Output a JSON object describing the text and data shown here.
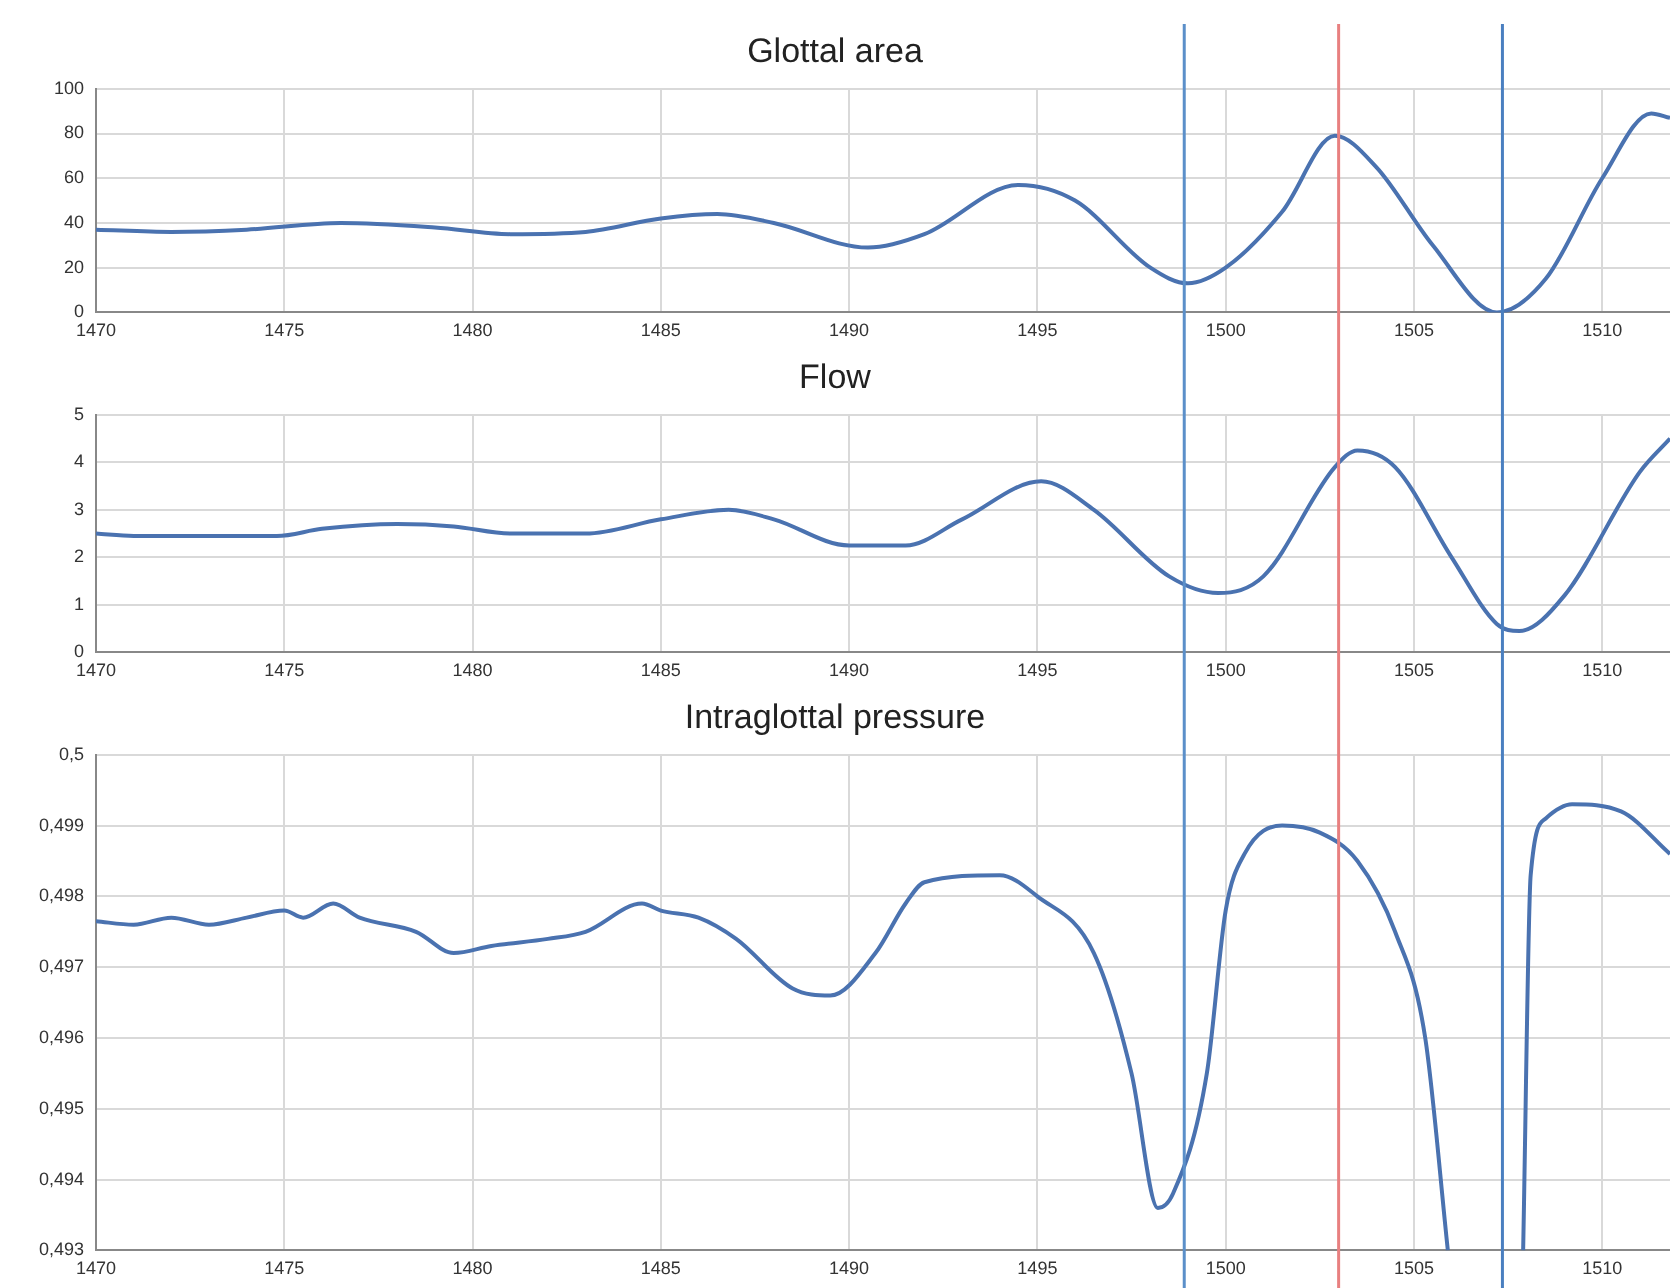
{
  "chart_data": [
    {
      "type": "line",
      "title": "Glottal area",
      "xlim": [
        1470,
        1511.8
      ],
      "xticks": [
        1470,
        1475,
        1480,
        1485,
        1490,
        1495,
        1500,
        1505,
        1510
      ],
      "ylim": [
        0,
        100
      ],
      "yticks": [
        0,
        20,
        40,
        60,
        80,
        100
      ],
      "grid": true,
      "x": [
        1470,
        1472,
        1474,
        1476.5,
        1479,
        1481,
        1483,
        1485,
        1486.5,
        1488,
        1490.5,
        1492,
        1494.5,
        1496,
        1498,
        1499,
        1500,
        1501.5,
        1502.9,
        1504,
        1505.5,
        1507.2,
        1508.5,
        1510,
        1511.3,
        1511.8
      ],
      "series": [
        {
          "color": "#4a72b0",
          "values": [
            37,
            36,
            37,
            40,
            38,
            35,
            36,
            42,
            44,
            40,
            29,
            35,
            57,
            50,
            20,
            13,
            20,
            45,
            79,
            65,
            30,
            0,
            15,
            60,
            89,
            87
          ]
        }
      ],
      "ref_lines": [
        {
          "axis": "x",
          "value": 1498.9,
          "color": "#5b8fc9"
        },
        {
          "axis": "x",
          "value": 1503,
          "color": "#e88080"
        },
        {
          "axis": "x",
          "value": 1507.35,
          "color": "#4a7fc0"
        }
      ]
    },
    {
      "type": "line",
      "title": "Flow",
      "xlim": [
        1470,
        1511.8
      ],
      "xticks": [
        1470,
        1475,
        1480,
        1485,
        1490,
        1495,
        1500,
        1505,
        1510
      ],
      "ylim": [
        0,
        5
      ],
      "yticks": [
        0,
        1,
        2,
        3,
        4,
        5
      ],
      "grid": true,
      "x": [
        1470,
        1471,
        1474.8,
        1476,
        1478,
        1479.5,
        1481,
        1483,
        1485,
        1486.8,
        1488,
        1490,
        1491.5,
        1493,
        1495.1,
        1496.5,
        1498.5,
        1499.8,
        1501,
        1502.9,
        1503.5,
        1504.5,
        1506,
        1507.2,
        1507.8,
        1509,
        1511,
        1511.8
      ],
      "series": [
        {
          "color": "#4a72b0",
          "values": [
            2.5,
            2.45,
            2.45,
            2.6,
            2.7,
            2.65,
            2.5,
            2.5,
            2.8,
            3.0,
            2.8,
            2.25,
            2.25,
            2.8,
            3.6,
            3.0,
            1.6,
            1.25,
            1.6,
            3.9,
            4.25,
            3.9,
            2.0,
            0.6,
            0.45,
            1.2,
            3.8,
            4.5
          ]
        }
      ],
      "ref_lines": [
        {
          "axis": "x",
          "value": 1498.9,
          "color": "#5b8fc9"
        },
        {
          "axis": "x",
          "value": 1503,
          "color": "#e88080"
        },
        {
          "axis": "x",
          "value": 1507.35,
          "color": "#4a7fc0"
        }
      ]
    },
    {
      "type": "line",
      "title": "Intraglottal pressure",
      "xlim": [
        1470,
        1511.8
      ],
      "xticks": [
        1470,
        1475,
        1480,
        1485,
        1490,
        1495,
        1500,
        1505,
        1510
      ],
      "ylim": [
        0.493,
        0.5
      ],
      "yticks": [
        {
          "value": 0.493,
          "label": "0,493"
        },
        {
          "value": 0.494,
          "label": "0,494"
        },
        {
          "value": 0.495,
          "label": "0,495"
        },
        {
          "value": 0.496,
          "label": "0,496"
        },
        {
          "value": 0.497,
          "label": "0,497"
        },
        {
          "value": 0.498,
          "label": "0,498"
        },
        {
          "value": 0.499,
          "label": "0,499"
        },
        {
          "value": 0.5,
          "label": "0,5"
        }
      ],
      "grid": true,
      "x": [
        1470,
        1471,
        1472,
        1473,
        1474,
        1475,
        1475.5,
        1476.3,
        1477,
        1478.5,
        1479.5,
        1480.5,
        1482,
        1483,
        1484.5,
        1485,
        1486,
        1487,
        1488.5,
        1489.5,
        1490.7,
        1491.5,
        1492,
        1494,
        1495,
        1496.5,
        1497.5,
        1498.2,
        1498.6,
        1499.5,
        1500,
        1500.5,
        1501.5,
        1502.5,
        1503.5,
        1504.5,
        1505.3,
        1505.9,
        1507,
        1507.9,
        1508.1,
        1508.5,
        1509.2,
        1510.5,
        1511.8
      ],
      "series": [
        {
          "color": "#4a72b0",
          "values": [
            0.49765,
            0.4976,
            0.4977,
            0.4976,
            0.4977,
            0.4978,
            0.4977,
            0.4979,
            0.4977,
            0.4975,
            0.4972,
            0.4973,
            0.4974,
            0.4975,
            0.4979,
            0.4978,
            0.4977,
            0.4974,
            0.4967,
            0.4966,
            0.4972,
            0.4979,
            0.4982,
            0.4983,
            0.498,
            0.4972,
            0.4955,
            0.4936,
            0.4938,
            0.4955,
            0.4978,
            0.4986,
            0.499,
            0.4989,
            0.4985,
            0.4975,
            0.496,
            0.493,
            null,
            0.493,
            0.4983,
            0.4991,
            0.4993,
            0.4992,
            0.4986
          ]
        }
      ],
      "ref_lines": [
        {
          "axis": "x",
          "value": 1498.9,
          "color": "#5b8fc9"
        },
        {
          "axis": "x",
          "value": 1503,
          "color": "#e88080"
        },
        {
          "axis": "x",
          "value": 1507.35,
          "color": "#4a7fc0"
        }
      ]
    }
  ]
}
